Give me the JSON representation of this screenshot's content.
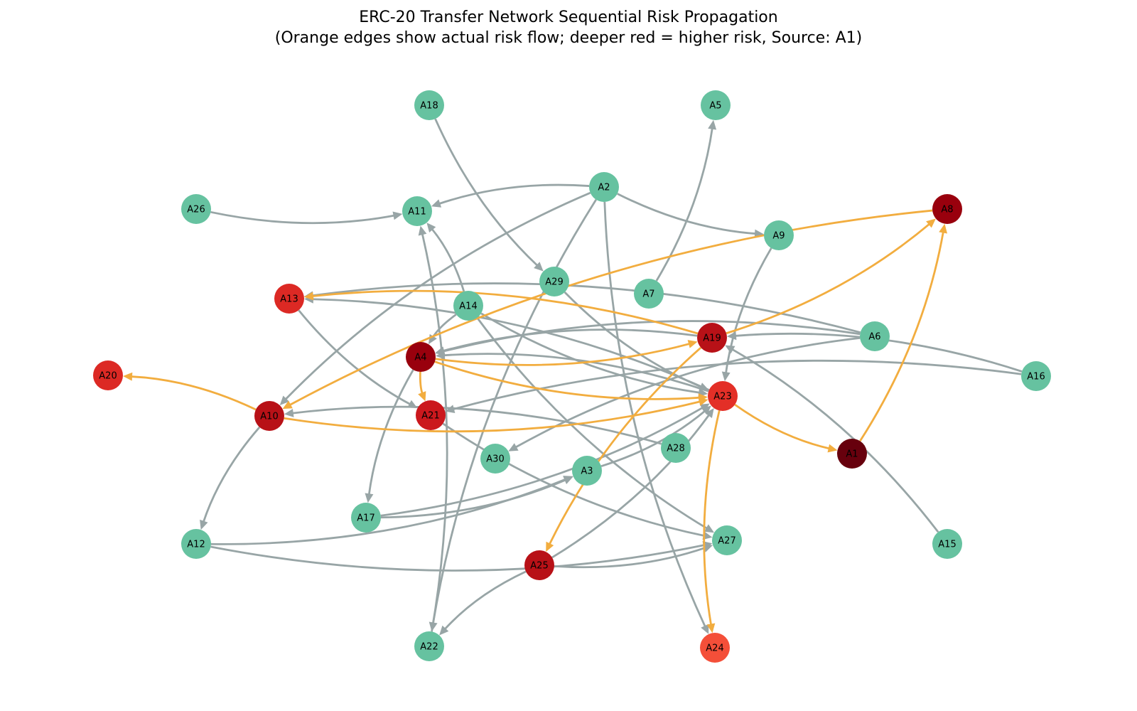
{
  "title": {
    "line1": "ERC-20 Transfer Network Sequential Risk Propagation",
    "line2": "(Orange edges show actual risk flow; deeper red = higher risk, Source: A1)"
  },
  "colors": {
    "normal_edge": "#98a5a6",
    "risk_edge": "#f2ad3f",
    "safe_node": "#66c2a0"
  },
  "nodes": [
    {
      "id": "A1",
      "color": "#67000d"
    },
    {
      "id": "A2",
      "color": "#66c2a0"
    },
    {
      "id": "A3",
      "color": "#66c2a0"
    },
    {
      "id": "A4",
      "color": "#99000d"
    },
    {
      "id": "A5",
      "color": "#66c2a0"
    },
    {
      "id": "A6",
      "color": "#66c2a0"
    },
    {
      "id": "A7",
      "color": "#66c2a0"
    },
    {
      "id": "A8",
      "color": "#99000d"
    },
    {
      "id": "A9",
      "color": "#66c2a0"
    },
    {
      "id": "A10",
      "color": "#b81117"
    },
    {
      "id": "A11",
      "color": "#66c2a0"
    },
    {
      "id": "A12",
      "color": "#66c2a0"
    },
    {
      "id": "A13",
      "color": "#dc2924"
    },
    {
      "id": "A14",
      "color": "#66c2a0"
    },
    {
      "id": "A15",
      "color": "#66c2a0"
    },
    {
      "id": "A16",
      "color": "#66c2a0"
    },
    {
      "id": "A17",
      "color": "#66c2a0"
    },
    {
      "id": "A18",
      "color": "#66c2a0"
    },
    {
      "id": "A19",
      "color": "#b81117"
    },
    {
      "id": "A20",
      "color": "#dc2924"
    },
    {
      "id": "A21",
      "color": "#cb181d"
    },
    {
      "id": "A22",
      "color": "#66c2a0"
    },
    {
      "id": "A23",
      "color": "#e32f27"
    },
    {
      "id": "A24",
      "color": "#f44f39"
    },
    {
      "id": "A25",
      "color": "#b81117"
    },
    {
      "id": "A26",
      "color": "#66c2a0"
    },
    {
      "id": "A27",
      "color": "#66c2a0"
    },
    {
      "id": "A28",
      "color": "#66c2a0"
    },
    {
      "id": "A29",
      "color": "#66c2a0"
    },
    {
      "id": "A30",
      "color": "#66c2a0"
    }
  ],
  "edges": [
    {
      "from": "A1",
      "to": "A8",
      "risk": true
    },
    {
      "from": "A23",
      "to": "A1",
      "risk": true
    },
    {
      "from": "A19",
      "to": "A8",
      "risk": true
    },
    {
      "from": "A8",
      "to": "A10",
      "risk": true
    },
    {
      "from": "A19",
      "to": "A13",
      "risk": true
    },
    {
      "from": "A4",
      "to": "A23",
      "risk": true
    },
    {
      "from": "A4",
      "to": "A19",
      "risk": true
    },
    {
      "from": "A4",
      "to": "A21",
      "risk": true
    },
    {
      "from": "A10",
      "to": "A20",
      "risk": true
    },
    {
      "from": "A10",
      "to": "A23",
      "risk": true
    },
    {
      "from": "A19",
      "to": "A25",
      "risk": true
    },
    {
      "from": "A23",
      "to": "A24",
      "risk": true
    },
    {
      "from": "A2",
      "to": "A11",
      "risk": false
    },
    {
      "from": "A2",
      "to": "A9",
      "risk": false
    },
    {
      "from": "A2",
      "to": "A10",
      "risk": false
    },
    {
      "from": "A2",
      "to": "A22",
      "risk": false
    },
    {
      "from": "A2",
      "to": "A24",
      "risk": false
    },
    {
      "from": "A26",
      "to": "A11",
      "risk": false
    },
    {
      "from": "A14",
      "to": "A11",
      "risk": false
    },
    {
      "from": "A14",
      "to": "A4",
      "risk": false
    },
    {
      "from": "A14",
      "to": "A23",
      "risk": false
    },
    {
      "from": "A14",
      "to": "A27",
      "risk": false
    },
    {
      "from": "A18",
      "to": "A29",
      "risk": false
    },
    {
      "from": "A29",
      "to": "A23",
      "risk": false
    },
    {
      "from": "A7",
      "to": "A5",
      "risk": false
    },
    {
      "from": "A9",
      "to": "A23",
      "risk": false
    },
    {
      "from": "A6",
      "to": "A13",
      "risk": false
    },
    {
      "from": "A6",
      "to": "A4",
      "risk": false
    },
    {
      "from": "A6",
      "to": "A30",
      "risk": false
    },
    {
      "from": "A16",
      "to": "A19",
      "risk": false
    },
    {
      "from": "A16",
      "to": "A21",
      "risk": false
    },
    {
      "from": "A19",
      "to": "A4",
      "risk": false
    },
    {
      "from": "A15",
      "to": "A19",
      "risk": false
    },
    {
      "from": "A13",
      "to": "A21",
      "risk": false
    },
    {
      "from": "A23",
      "to": "A13",
      "risk": false
    },
    {
      "from": "A23",
      "to": "A4",
      "risk": false
    },
    {
      "from": "A4",
      "to": "A17",
      "risk": false
    },
    {
      "from": "A28",
      "to": "A10",
      "risk": false
    },
    {
      "from": "A21",
      "to": "A27",
      "risk": false
    },
    {
      "from": "A10",
      "to": "A12",
      "risk": false
    },
    {
      "from": "A17",
      "to": "A3",
      "risk": false
    },
    {
      "from": "A17",
      "to": "A23",
      "risk": false
    },
    {
      "from": "A12",
      "to": "A3",
      "risk": false
    },
    {
      "from": "A12",
      "to": "A27",
      "risk": false
    },
    {
      "from": "A3",
      "to": "A23",
      "risk": false
    },
    {
      "from": "A25",
      "to": "A23",
      "risk": false
    },
    {
      "from": "A25",
      "to": "A27",
      "risk": false
    },
    {
      "from": "A25",
      "to": "A22",
      "risk": false
    },
    {
      "from": "A22",
      "to": "A11",
      "risk": false
    }
  ]
}
